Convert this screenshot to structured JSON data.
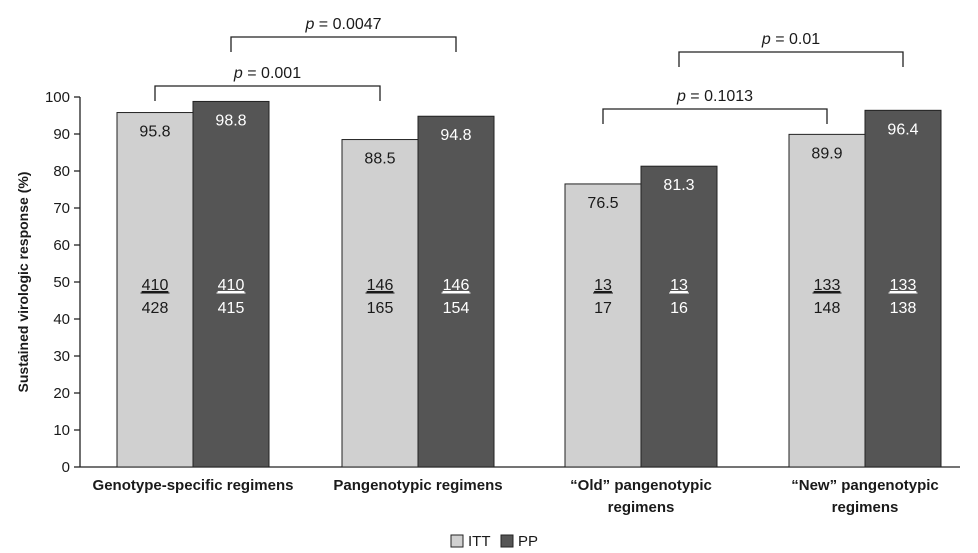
{
  "chart_data": {
    "type": "bar",
    "ylabel": "Sustained virologic response (%)",
    "xlabel": "",
    "ylim": [
      0,
      100
    ],
    "yticks": [
      0,
      10,
      20,
      30,
      40,
      50,
      60,
      70,
      80,
      90,
      100
    ],
    "grid": false,
    "legend_position": "bottom-center",
    "categories": [
      [
        "Genotype-specific regimens"
      ],
      [
        "Pangenotypic regimens"
      ],
      [
        "“Old” pangenotypic",
        "regimens"
      ],
      [
        "“New” pangenotypic",
        "regimens"
      ]
    ],
    "series": [
      {
        "name": "ITT",
        "color": "#d0d0d0",
        "values": [
          95.8,
          88.5,
          76.5,
          89.9
        ],
        "labels": [
          "95.8",
          "88.5",
          "76.5",
          "89.9"
        ],
        "numerators": [
          "410",
          "146",
          "13",
          "133"
        ],
        "denominators": [
          "428",
          "165",
          "17",
          "148"
        ],
        "text_color": "#1a1a1a"
      },
      {
        "name": "PP",
        "color": "#555555",
        "values": [
          98.8,
          94.8,
          81.3,
          96.4
        ],
        "labels": [
          "98.8",
          "94.8",
          "81.3",
          "96.4"
        ],
        "numerators": [
          "410",
          "146",
          "13",
          "133"
        ],
        "denominators": [
          "415",
          "154",
          "16",
          "138"
        ],
        "text_color": "#ffffff"
      }
    ],
    "annotations": [
      {
        "prefix": "p",
        "value": " = 0.0047",
        "from": [
          0,
          "PP"
        ],
        "to": [
          1,
          "PP"
        ]
      },
      {
        "prefix": "p",
        "value": " = 0.001",
        "from": [
          0,
          "ITT"
        ],
        "to": [
          1,
          "ITT"
        ]
      },
      {
        "prefix": "p",
        "value": " = 0.01",
        "from": [
          2,
          "PP"
        ],
        "to": [
          3,
          "PP"
        ]
      },
      {
        "prefix": "p",
        "value": " = 0.1013",
        "from": [
          2,
          "ITT"
        ],
        "to": [
          3,
          "ITT"
        ]
      }
    ]
  }
}
